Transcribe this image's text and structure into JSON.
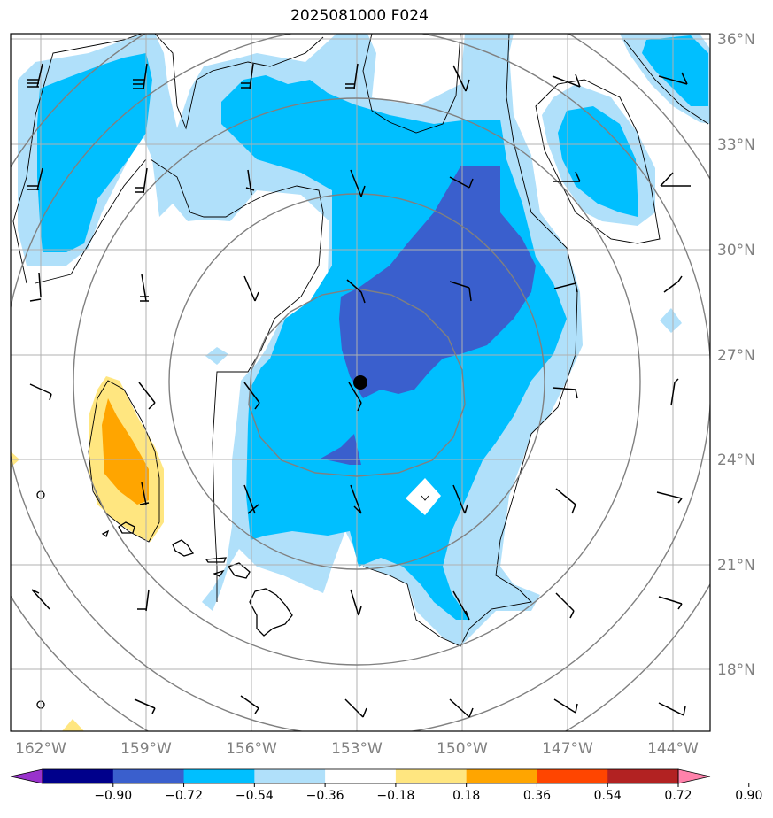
{
  "title": "2025081000 F024",
  "map": {
    "lon_range": [
      -163,
      -143.5
    ],
    "lat_range": [
      16,
      36.2
    ],
    "lon_ticks": [
      -162,
      -159,
      -156,
      -153,
      -150,
      -147,
      -144
    ],
    "lon_tick_labels": [
      "162°W",
      "159°W",
      "156°W",
      "153°W",
      "150°W",
      "147°W",
      "144°W"
    ],
    "lat_ticks": [
      18,
      21,
      24,
      27,
      30,
      33,
      36
    ],
    "lat_tick_labels": [
      "18°N",
      "21°N",
      "24°N",
      "27°N",
      "30°N",
      "33°N",
      "36°N"
    ],
    "grid": true,
    "label_color": "#808080",
    "storm_center": {
      "lon": -152.9,
      "lat": 26.2
    },
    "range_rings": "concentric circles centered on storm",
    "features": [
      "contour-fill",
      "wind-barbs",
      "coastlines-hawaii",
      "range-rings"
    ]
  },
  "colorbar": {
    "levels": [
      -0.9,
      -0.72,
      -0.54,
      -0.36,
      -0.18,
      0.18,
      0.36,
      0.54,
      0.72,
      0.9
    ],
    "labels": [
      "−0.90",
      "−0.72",
      "−0.54",
      "−0.36",
      "−0.18",
      "0.18",
      "0.36",
      "0.54",
      "0.72",
      "0.90"
    ],
    "colors": [
      "#9932cc",
      "#00008b",
      "#3a5fcd",
      "#00bfff",
      "#b0e0fa",
      "#ffffff",
      "#ffe680",
      "#ffa500",
      "#ff4500",
      "#b22222",
      "#ff82ab"
    ],
    "extend": "both"
  }
}
